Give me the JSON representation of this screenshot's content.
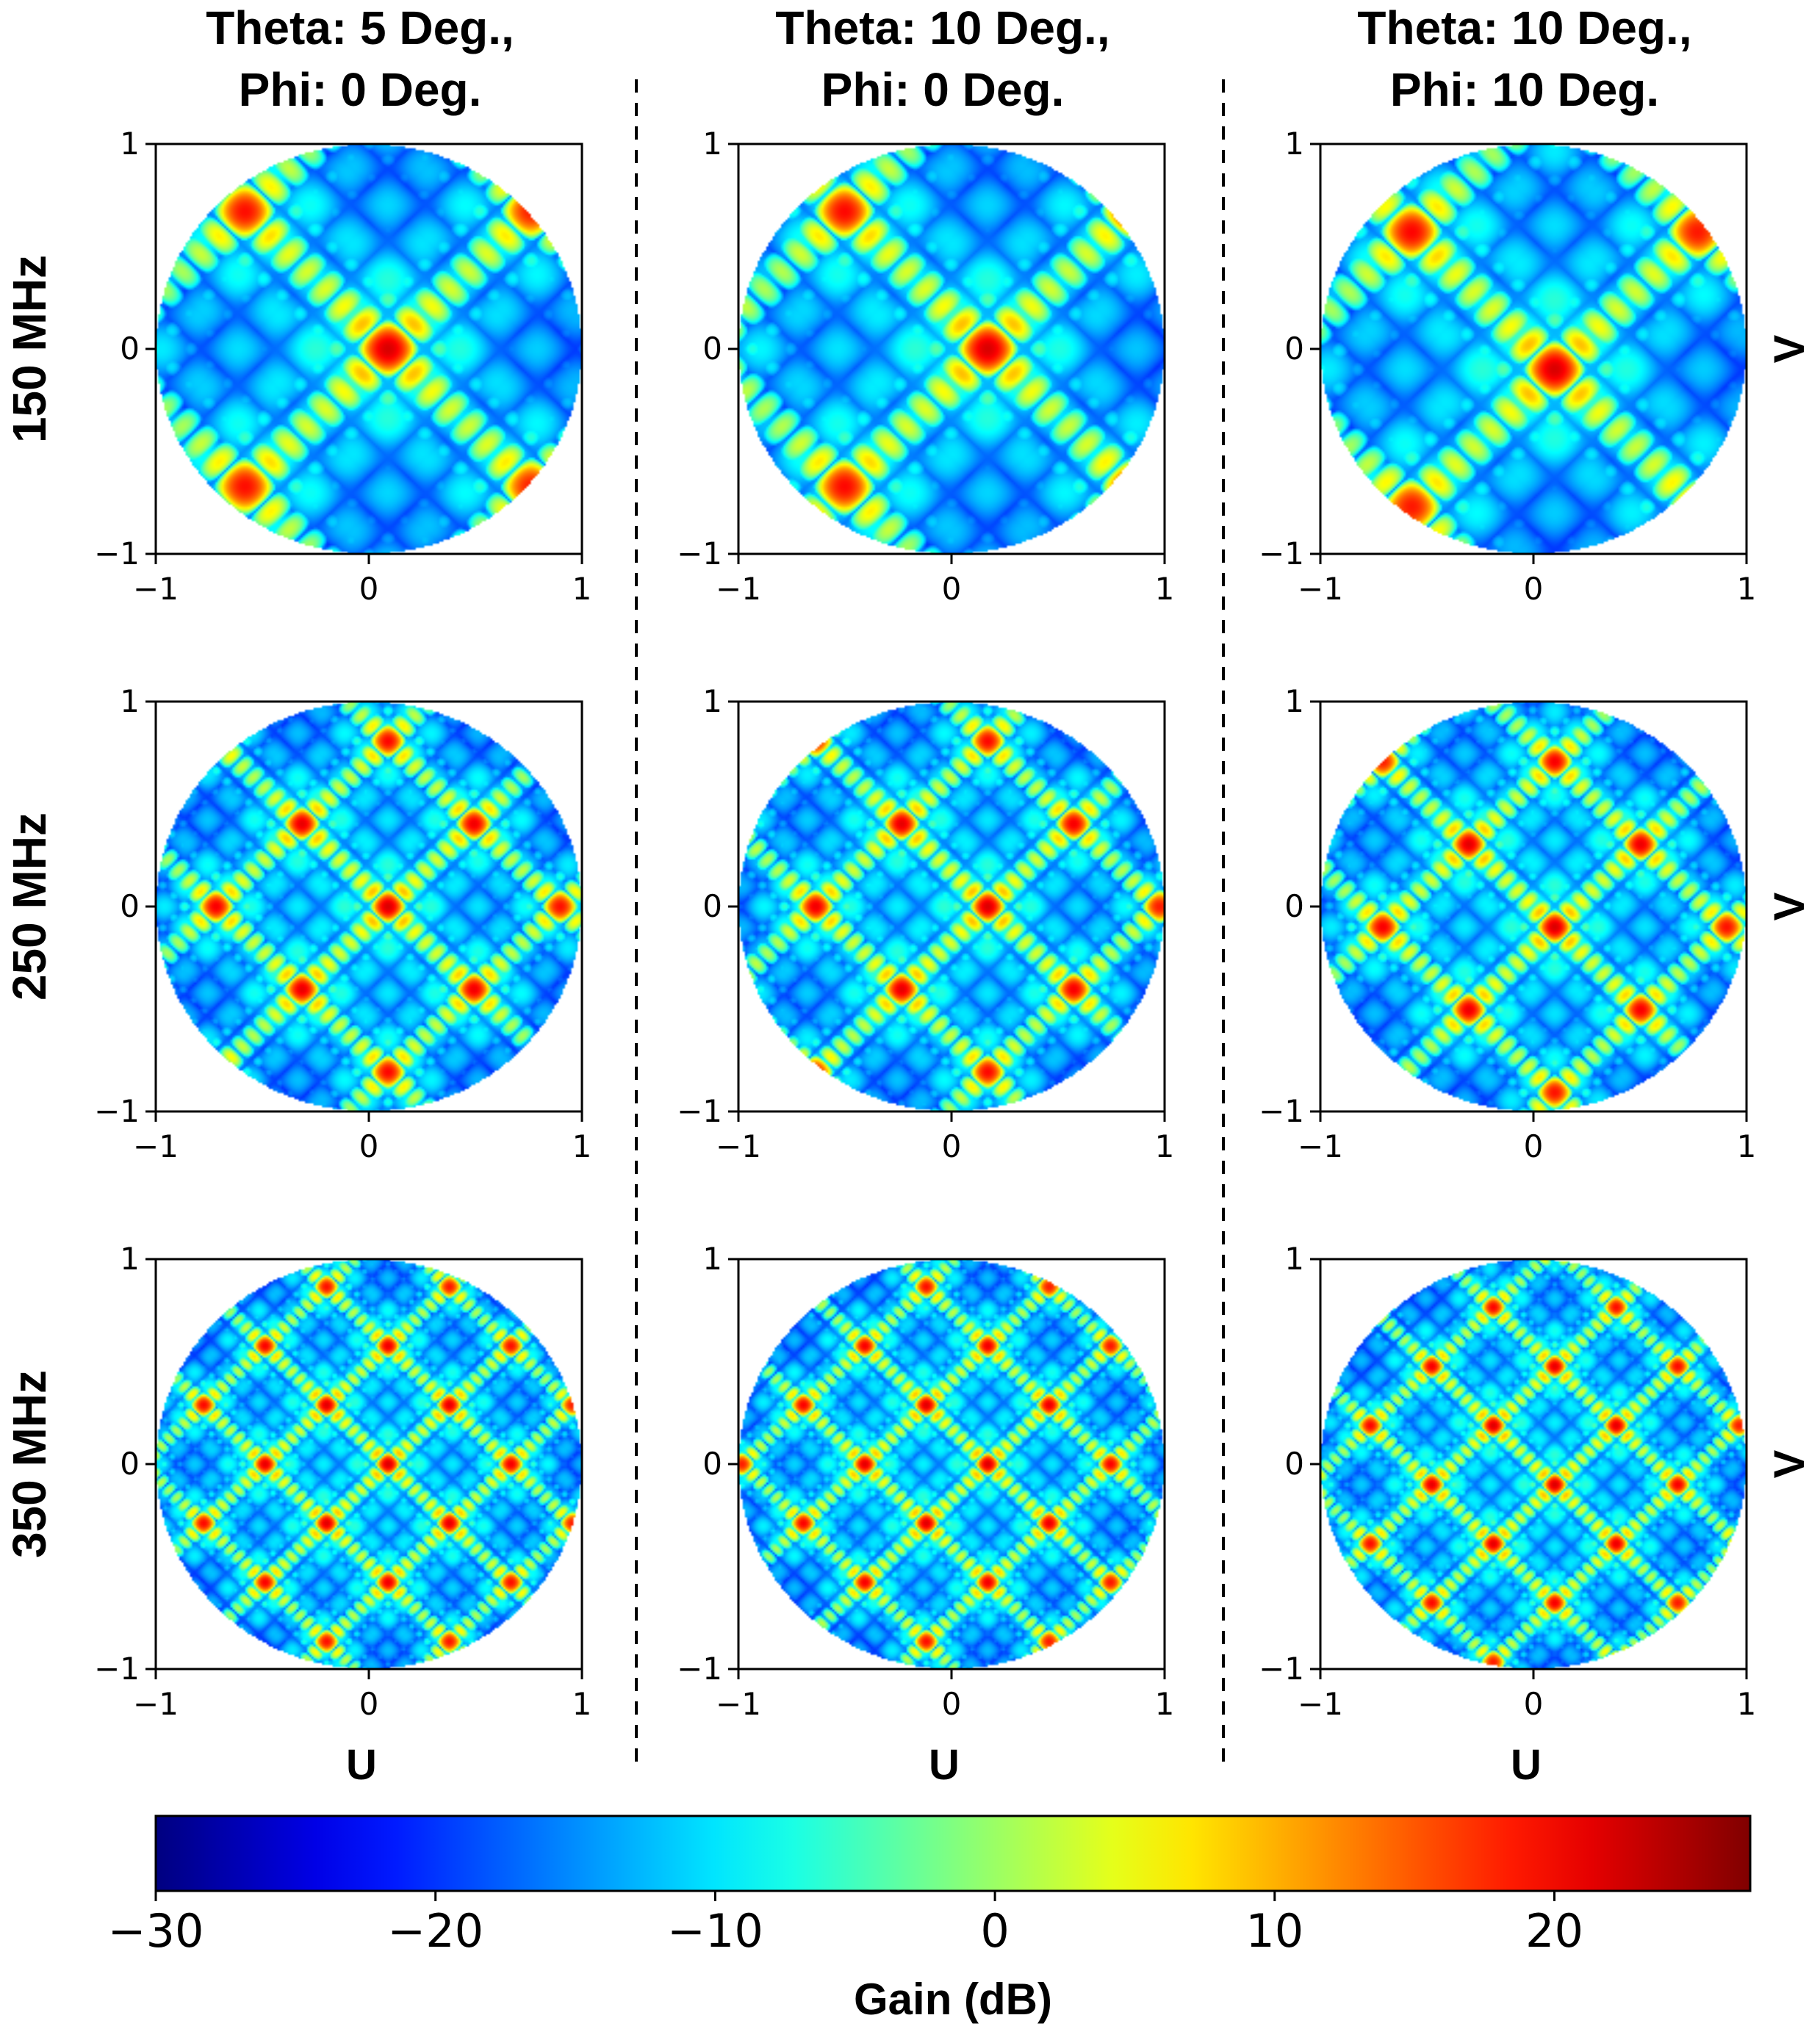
{
  "chart_data": {
    "type": "heatmap",
    "description_kind": "uv-plane antenna array gain pattern, 3x3 grid of subplots",
    "column_titles": [
      [
        "Theta: 5 Deg.,",
        "Phi: 0 Deg."
      ],
      [
        "Theta: 10 Deg.,",
        "Phi: 0 Deg."
      ],
      [
        "Theta: 10 Deg.,",
        "Phi: 10 Deg."
      ]
    ],
    "row_labels": [
      "150 MHz",
      "250 MHz",
      "350 MHz"
    ],
    "xlabel": "U",
    "ylabel": "V",
    "xlim": [
      -1,
      1
    ],
    "ylim": [
      -1,
      1
    ],
    "xticks": [
      "−1",
      "0",
      "1"
    ],
    "yticks": [
      "1",
      "0",
      "−1"
    ],
    "grid": false,
    "colorbar": {
      "label": "Gain (dB)",
      "range": [
        -30,
        27
      ],
      "ticks": [
        "−30",
        "−20",
        "−10",
        "0",
        "10",
        "20"
      ],
      "tick_values": [
        -30,
        -20,
        -10,
        0,
        10,
        20
      ],
      "colormap": "jet"
    },
    "frequencies_mhz": [
      150,
      250,
      350
    ],
    "steering": [
      {
        "theta_deg": 5,
        "phi_deg": 0,
        "main_lobe_uv": [
          0.09,
          0.0
        ]
      },
      {
        "theta_deg": 10,
        "phi_deg": 0,
        "main_lobe_uv": [
          0.17,
          0.0
        ]
      },
      {
        "theta_deg": 10,
        "phi_deg": 10,
        "main_lobe_uv": [
          0.1,
          -0.1
        ]
      }
    ],
    "peak_gain_db": 22
  }
}
